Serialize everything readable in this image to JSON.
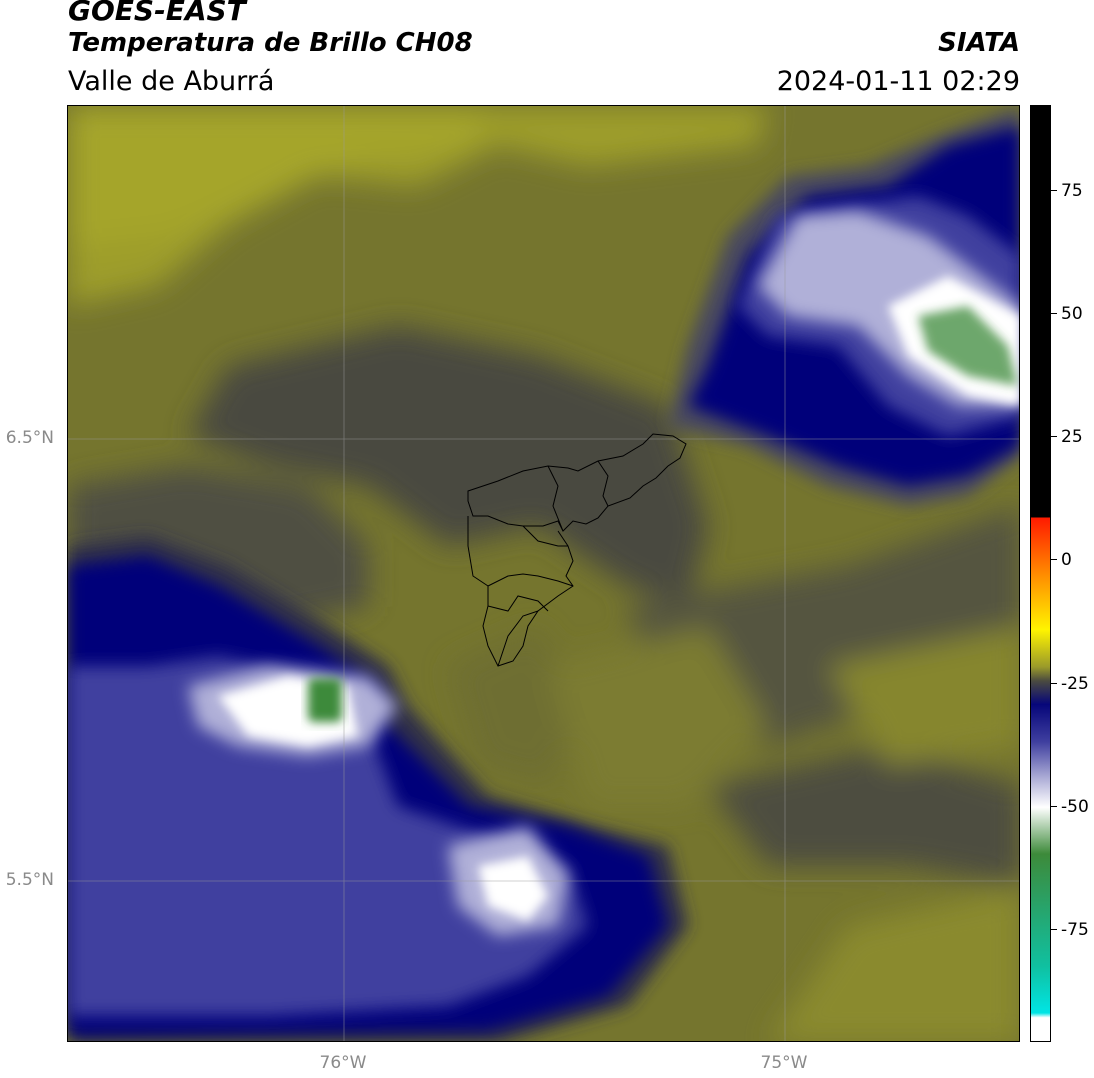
{
  "header": {
    "satellite": "GOES-EAST",
    "product": "Temperatura de Brillo CH08",
    "region": "Valle de Aburrá",
    "organization": "SIATA",
    "datetime": "2024-01-11 02:29"
  },
  "map": {
    "lat_labels": [
      "6.5°N",
      "5.5°N"
    ],
    "lon_labels": [
      "76°W",
      "75°W"
    ],
    "field": "brightness temperature (°C)",
    "features": [
      "Valle de Aburrá municipal boundaries",
      "cold cloud top northeast",
      "cold cloud top southwest"
    ]
  },
  "colorbar": {
    "labels": [
      "75",
      "50",
      "25",
      "0",
      "-25",
      "-50",
      "-75"
    ],
    "range": [
      -95,
      92
    ],
    "colors": {
      "black": "#000000",
      "red": "#ff1a00",
      "orange": "#ff8a00",
      "yellow": "#fff400",
      "olive": "#9a9a2a",
      "dark_olive": "#4a4a40",
      "navy": "#06067a",
      "blue": "#3f3f9f",
      "lavender": "#b0b0d8",
      "white": "#ffffff",
      "green": "#3d8a3a",
      "teal": "#10c0a0",
      "cyan": "#00e5e5"
    }
  }
}
